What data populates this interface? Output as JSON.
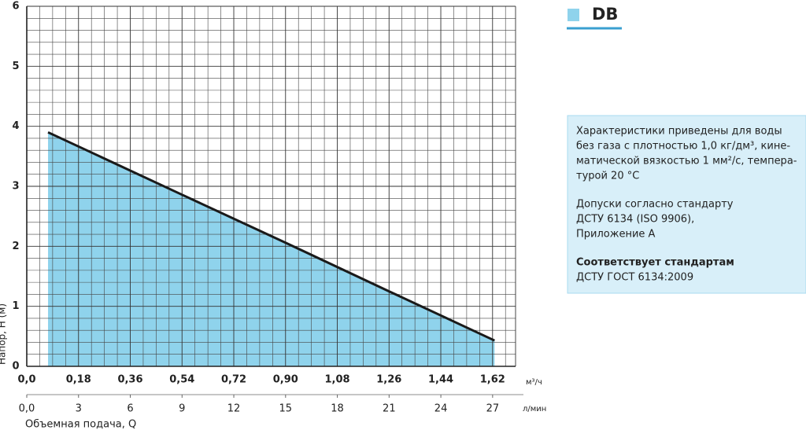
{
  "chart_data": {
    "type": "area",
    "x": [
      0.074,
      0.54,
      0.9,
      1.26,
      1.627
    ],
    "series": [
      {
        "name": "DB",
        "color": "#8fd3ec",
        "line_color": "#1a1a1a",
        "values": [
          3.9,
          2.86,
          2.06,
          1.25,
          0.43
        ]
      }
    ],
    "xlim": [
      0,
      1.7
    ],
    "ylim": [
      0,
      6
    ],
    "xticks": [
      {
        "value": 0,
        "label": "0,0"
      },
      {
        "value": 0.18,
        "label": "0,18"
      },
      {
        "value": 0.36,
        "label": "0,36"
      },
      {
        "value": 0.54,
        "label": "0,54"
      },
      {
        "value": 0.72,
        "label": "0,72"
      },
      {
        "value": 0.9,
        "label": "0,90"
      },
      {
        "value": 1.08,
        "label": "1,08"
      },
      {
        "value": 1.26,
        "label": "1,26"
      },
      {
        "value": 1.44,
        "label": "1,44"
      },
      {
        "value": 1.62,
        "label": "1,62"
      }
    ],
    "yticks": [
      0,
      1,
      2,
      3,
      4,
      5,
      6
    ],
    "x2lim": [
      0,
      28.33
    ],
    "x2ticks": [
      {
        "value": 0,
        "label": "0,0"
      },
      3,
      6,
      9,
      12,
      15,
      18,
      21,
      24,
      27
    ],
    "xunit": "м³/ч",
    "x2unit": "л/мин",
    "xlabel": "Объемная подача, Q",
    "ylabel": "Напор, H (м)",
    "grid": true
  },
  "notes": {
    "paragraph1": [
      "Характеристики приведены для воды",
      "без газа с плотностью 1,0 кг/дм³, кине-",
      "матической вязкостью 1 мм²/с, темпера-",
      "турой 20 °C"
    ],
    "paragraph2": [
      "Допуски согласно стандарту",
      "ДСТУ 6134 (ISO 9906),",
      "Приложение А"
    ],
    "heading": "Соответствует стандартам",
    "standard": "ДСТУ ГОСТ 6134:2009"
  }
}
